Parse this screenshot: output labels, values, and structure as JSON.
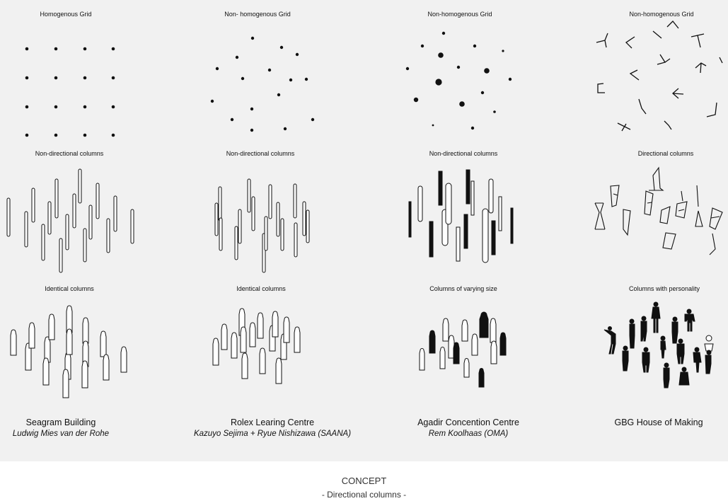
{
  "rows": {
    "grid_labels": [
      "Homogenous Grid",
      "Non- homogenous Grid",
      "Non-homogenous Grid",
      "Non-homogenous Grid"
    ],
    "column_labels": [
      "Non-directional columns",
      "Non-directional columns",
      "Non-directional columns",
      "Directional columns"
    ],
    "people_labels": [
      "Identical columns",
      "Identical columns",
      "Columns of varying size",
      "Columns with personality"
    ]
  },
  "projects": [
    {
      "name": "Seagram Building",
      "author": "Ludwig Mies van der Rohe"
    },
    {
      "name": "Rolex Learing Centre",
      "author": "Kazuyo Sejima + Ryue Nishizawa (SAANA)"
    },
    {
      "name": "Agadir Concention Centre",
      "author": "Rem Koolhaas (OMA)"
    },
    {
      "name": "GBG House of Making",
      "author": ""
    }
  ],
  "footer": {
    "title": "CONCEPT",
    "subtitle": "- Directional columns -"
  },
  "colors": {
    "panel": "#f1f1f1",
    "ink": "#111111"
  }
}
